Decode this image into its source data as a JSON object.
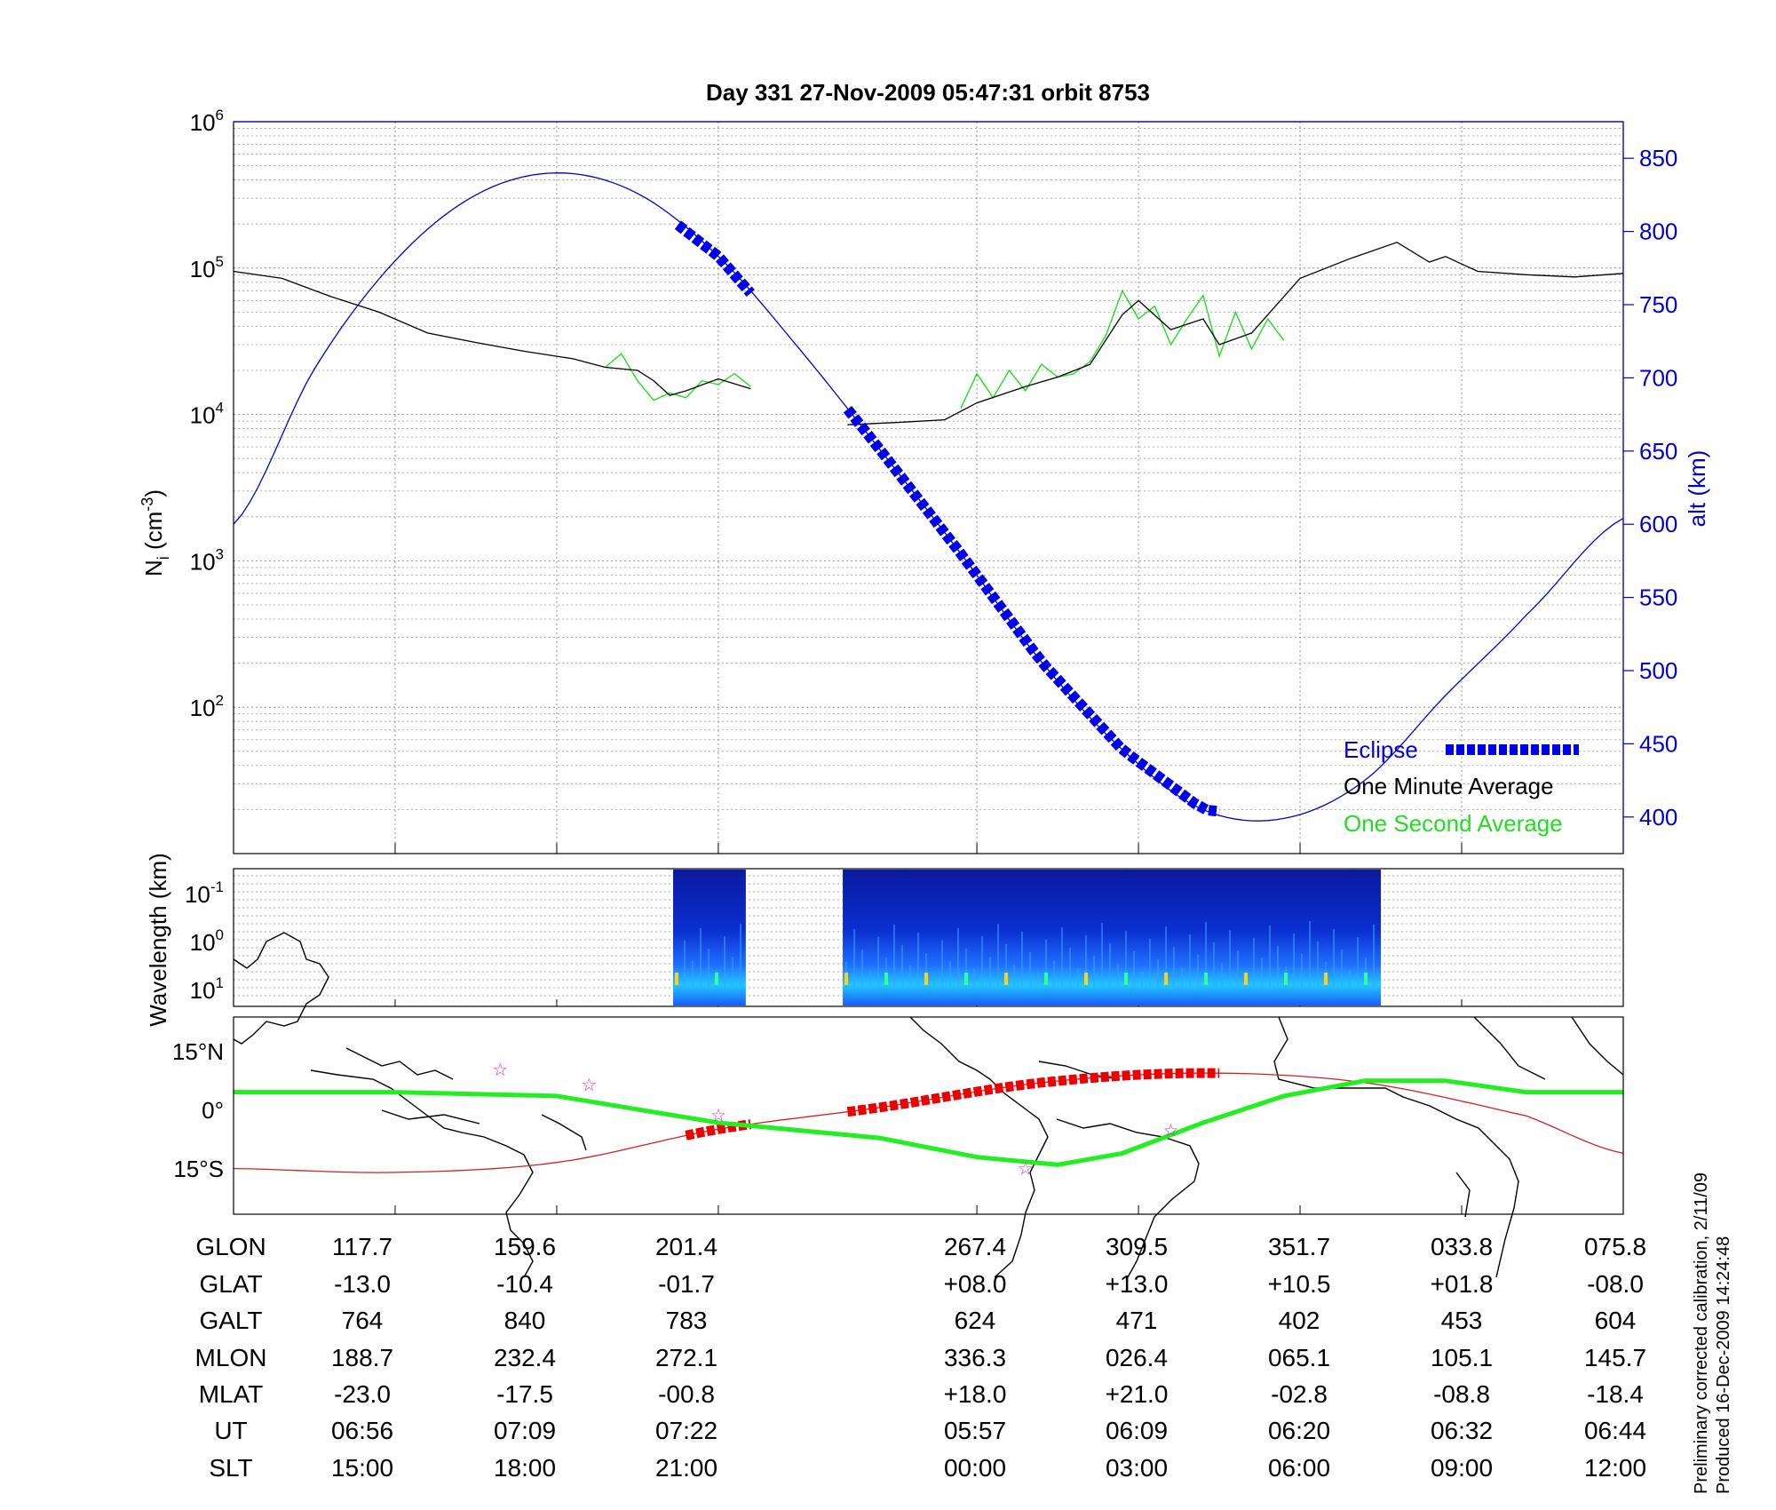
{
  "title": "Day 331  27-Nov-2009 05:47:31   orbit 8753",
  "colors": {
    "altitude": "#0000cc",
    "eclipse": "#0000ee",
    "one_minute": "#000000",
    "one_second": "#22dd22",
    "track_red": "#ee0000",
    "magnetic_track": "#22ee22",
    "dip_equator": "#cc2222",
    "star": "#cc33cc"
  },
  "chart_data": [
    {
      "type": "line",
      "panel": "density",
      "ylabel": "N_i (cm^-3)",
      "ylabel_main": "N",
      "ylabel_sub": "i",
      "ylabel_unit": " (cm",
      "ylabel_sup": "-3",
      "ylabel_close": ")",
      "y2label": "alt (km)",
      "yscale": "log",
      "ylim": [
        10,
        1000000
      ],
      "yticks": [
        {
          "base": "10",
          "exp": "2",
          "value": 100
        },
        {
          "base": "10",
          "exp": "3",
          "value": 1000
        },
        {
          "base": "10",
          "exp": "4",
          "value": 10000
        },
        {
          "base": "10",
          "exp": "5",
          "value": 100000
        },
        {
          "base": "10",
          "exp": "6",
          "value": 1000000
        }
      ],
      "y2lim": [
        375,
        875
      ],
      "y2ticks": [
        "400",
        "450",
        "500",
        "550",
        "600",
        "650",
        "700",
        "750",
        "800",
        "850"
      ],
      "xlim": [
        0,
        8.6
      ],
      "xgrid": [
        1,
        2,
        3,
        4.6,
        5.6,
        6.6,
        7.6
      ],
      "legend": {
        "position": "bottom-right",
        "entries": [
          "Eclipse",
          "One Minute Average",
          "One Second Average"
        ]
      },
      "series": [
        {
          "name": "alt (km)",
          "x": [
            0,
            0.5,
            1,
            1.5,
            2,
            2.5,
            3,
            3.5,
            4,
            4.5,
            5,
            5.5,
            6,
            6.5,
            7,
            7.5,
            8,
            8.6
          ],
          "y": [
            600,
            706,
            780,
            825,
            840,
            826,
            783,
            720,
            651,
            580,
            506,
            446,
            405,
            399,
            425,
            483,
            538,
            604
          ]
        },
        {
          "name": "Eclipse",
          "segments": [
            {
              "x": [
                2.75,
                3.2
              ],
              "y": [
                810,
                762
              ]
            },
            {
              "x": [
                3.8,
                6.1
              ],
              "y": [
                755,
                420
              ]
            }
          ]
        },
        {
          "name": "One Minute Average",
          "segments": [
            {
              "x": [
                0,
                0.3,
                0.6,
                0.9,
                1.2,
                1.5,
                1.8,
                2.1,
                2.3,
                2.5,
                2.6,
                2.7,
                2.8,
                3.0,
                3.2
              ],
              "y": [
                95000,
                85000,
                64000,
                50000,
                36000,
                31000,
                27000,
                24000,
                21000,
                20000,
                17000,
                13500,
                14500,
                17500,
                15000
              ]
            },
            {
              "x": [
                3.8,
                4.1,
                4.4,
                4.6,
                4.9,
                5.1,
                5.3,
                5.5,
                5.6,
                5.8,
                6.0,
                6.1,
                6.3,
                6.6,
                6.9,
                7.2,
                7.4,
                7.5,
                7.7,
                8.0,
                8.3,
                8.6
              ],
              "y": [
                8500,
                8800,
                9200,
                12000,
                15500,
                18000,
                22000,
                48000,
                60000,
                38000,
                45000,
                30000,
                36000,
                85000,
                115000,
                150000,
                110000,
                120000,
                95000,
                90000,
                87000,
                92000
              ]
            }
          ]
        },
        {
          "name": "One Second Average",
          "segments": [
            {
              "x": [
                2.3,
                2.4,
                2.5,
                2.6,
                2.7,
                2.8,
                2.9,
                3.0,
                3.1,
                3.2
              ],
              "y": [
                21000,
                26000,
                17000,
                12500,
                14000,
                13000,
                17000,
                16000,
                19000,
                15500
              ]
            },
            {
              "x": [
                4.5,
                4.6,
                4.7,
                4.8,
                4.9,
                5.0,
                5.1,
                5.2,
                5.3,
                5.4,
                5.5,
                5.6,
                5.7,
                5.8,
                5.9,
                6.0,
                6.1,
                6.2,
                6.3,
                6.4,
                6.5
              ],
              "y": [
                11000,
                19000,
                13000,
                20000,
                14500,
                22000,
                18000,
                19000,
                23000,
                35000,
                70000,
                45000,
                55000,
                30000,
                45000,
                65000,
                25000,
                50000,
                28000,
                45000,
                32000
              ]
            }
          ]
        }
      ]
    },
    {
      "type": "heatmap",
      "panel": "spectrogram",
      "ylabel": "Wavelength (km)",
      "yscale": "log",
      "yticks": [
        {
          "base": "10",
          "exp": "-1"
        },
        {
          "base": "10",
          "exp": "0"
        },
        {
          "base": "10",
          "exp": "1"
        }
      ],
      "segments": [
        [
          2.72,
          3.17
        ],
        [
          3.77,
          7.1
        ]
      ]
    },
    {
      "type": "line",
      "panel": "map",
      "yticks": [
        "15°N",
        "0°",
        "15°S"
      ],
      "series": [
        {
          "name": "satellite track",
          "x": [
            0,
            1,
            2,
            3,
            4,
            5,
            6,
            7,
            8,
            8.6
          ],
          "y": [
            -12,
            -13,
            -10.4,
            -1.7,
            4,
            10.5,
            13,
            10.5,
            1.8,
            -8
          ]
        },
        {
          "name": "magnetic equator",
          "x": [
            0,
            1,
            2,
            3,
            4,
            4.6,
            5.1,
            5.5,
            6.0,
            6.5,
            7.0,
            7.5,
            8.0,
            8.6
          ],
          "y": [
            8,
            8,
            7,
            0,
            -4,
            -9,
            -11,
            -8,
            0,
            7,
            11,
            11,
            8,
            8
          ]
        }
      ],
      "eclipse_x": [
        [
          2.75,
          3.2
        ],
        [
          3.8,
          6.1
        ]
      ],
      "stars": [
        {
          "x": 1.65,
          "y": 14
        },
        {
          "x": 2.2,
          "y": 10
        },
        {
          "x": 3.0,
          "y": 2
        },
        {
          "x": 4.9,
          "y": -12
        },
        {
          "x": 5.8,
          "y": -2
        }
      ]
    }
  ],
  "table": {
    "labels": [
      "GLON",
      "GLAT",
      "GALT",
      "MLON",
      "MLAT",
      "UT",
      "SLT"
    ],
    "columns": [
      [
        "117.7",
        "-13.0",
        "764",
        "188.7",
        "-23.0",
        "06:56",
        "15:00"
      ],
      [
        "159.6",
        "-10.4",
        "840",
        "232.4",
        "-17.5",
        "07:09",
        "18:00"
      ],
      [
        "201.4",
        "-01.7",
        "783",
        "272.1",
        "-00.8",
        "07:22",
        "21:00"
      ],
      [
        "267.4",
        "+08.0",
        "624",
        "336.3",
        "+18.0",
        "05:57",
        "00:00"
      ],
      [
        "309.5",
        "+13.0",
        "471",
        "026.4",
        "+21.0",
        "06:09",
        "03:00"
      ],
      [
        "351.7",
        "+10.5",
        "402",
        "065.1",
        "-02.8",
        "06:20",
        "06:00"
      ],
      [
        "033.8",
        "+01.8",
        "453",
        "105.1",
        "-08.8",
        "06:32",
        "09:00"
      ],
      [
        "075.8",
        "-08.0",
        "604",
        "145.7",
        "-18.4",
        "06:44",
        "12:00"
      ]
    ]
  },
  "footer": {
    "calibration": "Preliminary corrected calibration, 2/11/09",
    "produced": "Produced 16-Dec-2009 14:24:48"
  }
}
